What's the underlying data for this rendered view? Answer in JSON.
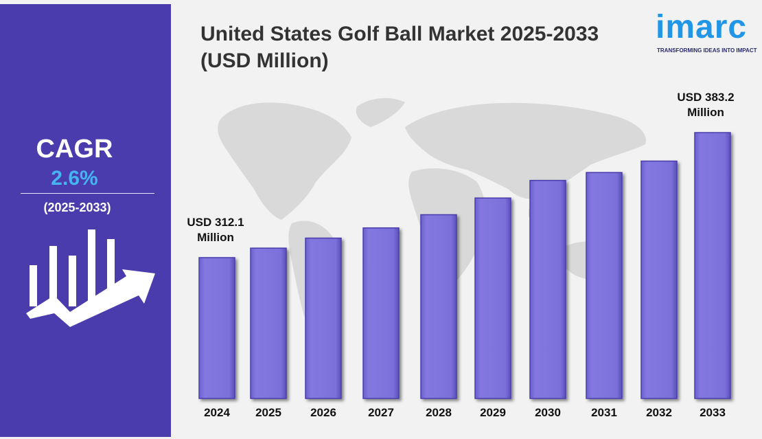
{
  "sidebar": {
    "cagr_label": "CAGR",
    "cagr_value": "2.6%",
    "cagr_period": "(2025-2033)"
  },
  "logo": {
    "wordmark": "imarc",
    "tagline": "TRANSFORMING IDEAS INTO IMPACT"
  },
  "colors": {
    "sidebar": "#4a3cad",
    "bar": "#7b70d9",
    "accent": "#45b4f0",
    "brand": "#2196e6"
  },
  "chart_data": {
    "type": "bar",
    "title": "United States Golf Ball Market 2025-2033\n(USD Million)",
    "categories": [
      "2024",
      "2025",
      "2026",
      "2027",
      "2028",
      "2029",
      "2030",
      "2031",
      "2032",
      "2033"
    ],
    "values": [
      312.1,
      317.5,
      323.2,
      329.0,
      336.5,
      346.0,
      356.0,
      360.5,
      367.0,
      383.2
    ],
    "ylim": [
      232.0,
      400.0
    ],
    "annotations": [
      {
        "category": "2024",
        "text": "USD 312.1\nMillion"
      },
      {
        "category": "2033",
        "text": "USD 383.2\nMillion"
      }
    ],
    "grid": false,
    "legend": "none"
  }
}
